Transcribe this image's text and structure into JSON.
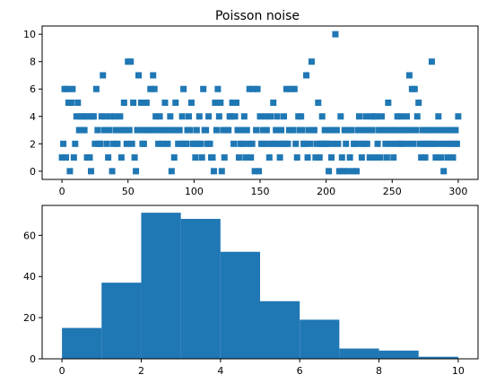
{
  "chart_data": [
    {
      "type": "scatter",
      "title": "Poisson noise",
      "xlabel": "",
      "ylabel": "",
      "xlim": [
        -15,
        315
      ],
      "ylim": [
        -0.6,
        10.6
      ],
      "xticks": [
        0,
        50,
        100,
        150,
        200,
        250,
        300
      ],
      "yticks": [
        0,
        2,
        4,
        6,
        8,
        10
      ],
      "marker": "square",
      "color": "#1f77b4",
      "grid": false,
      "x_start": 0,
      "x_step": 1,
      "values": [
        1,
        2,
        6,
        1,
        6,
        5,
        0,
        5,
        6,
        1,
        2,
        4,
        5,
        3,
        4,
        3,
        4,
        3,
        4,
        1,
        4,
        1,
        0,
        4,
        4,
        2,
        6,
        3,
        2,
        2,
        4,
        7,
        3,
        4,
        2,
        1,
        3,
        4,
        0,
        2,
        4,
        3,
        2,
        3,
        4,
        1,
        3,
        5,
        3,
        2,
        8,
        3,
        8,
        2,
        5,
        1,
        0,
        3,
        7,
        3,
        5,
        2,
        2,
        3,
        5,
        3,
        3,
        6,
        3,
        7,
        6,
        4,
        3,
        2,
        4,
        3,
        2,
        3,
        5,
        3,
        2,
        3,
        4,
        0,
        3,
        1,
        5,
        3,
        2,
        3,
        2,
        4,
        6,
        2,
        2,
        3,
        4,
        3,
        5,
        2,
        2,
        1,
        3,
        2,
        4,
        2,
        1,
        6,
        3,
        3,
        2,
        4,
        2,
        1,
        1,
        0,
        5,
        3,
        6,
        4,
        5,
        0,
        3,
        1,
        3,
        3,
        3,
        4,
        4,
        5,
        2,
        4,
        5,
        3,
        1,
        2,
        3,
        2,
        4,
        1,
        3,
        2,
        6,
        1,
        2,
        6,
        0,
        3,
        6,
        0,
        4,
        2,
        3,
        2,
        4,
        3,
        2,
        1,
        4,
        2,
        5,
        2,
        3,
        4,
        2,
        1,
        3,
        2,
        4,
        2,
        6,
        2,
        3,
        6,
        3,
        3,
        6,
        2,
        1,
        4,
        3,
        4,
        3,
        2,
        2,
        7,
        1,
        3,
        2,
        8,
        3,
        3,
        1,
        2,
        5,
        1,
        2,
        4,
        2,
        3,
        2,
        2,
        0,
        3,
        1,
        2,
        3,
        10,
        3,
        2,
        0,
        4,
        1,
        0,
        3,
        2,
        0,
        3,
        1,
        3,
        0,
        2,
        2,
        0,
        3,
        4,
        2,
        1,
        3,
        2,
        4,
        2,
        3,
        1,
        4,
        3,
        4,
        1,
        4,
        2,
        3,
        1,
        4,
        3,
        3,
        2,
        1,
        5,
        3,
        2,
        3,
        1,
        3,
        2,
        4,
        3,
        2,
        4,
        2,
        3,
        3,
        4,
        2,
        7,
        3,
        6,
        2,
        6,
        3,
        4,
        5,
        2,
        1,
        3,
        2,
        1,
        2,
        3,
        3,
        2,
        8,
        2,
        3,
        1,
        2,
        4,
        3,
        1,
        2,
        0,
        3,
        2,
        1,
        3,
        2,
        3,
        1,
        2,
        3,
        2,
        4
      ]
    },
    {
      "type": "bar",
      "title": "",
      "xlabel": "",
      "ylabel": "",
      "bin_edges": [
        0,
        1,
        2,
        3,
        4,
        5,
        6,
        7,
        8,
        9,
        10
      ],
      "values": [
        15,
        37,
        71,
        68,
        52,
        28,
        19,
        5,
        4,
        1
      ],
      "xlim": [
        -0.5,
        10.5
      ],
      "ylim": [
        0,
        74.55
      ],
      "xticks": [
        0,
        2,
        4,
        6,
        8,
        10
      ],
      "yticks": [
        0,
        20,
        40,
        60
      ],
      "color": "#1f77b4",
      "grid": false
    }
  ]
}
